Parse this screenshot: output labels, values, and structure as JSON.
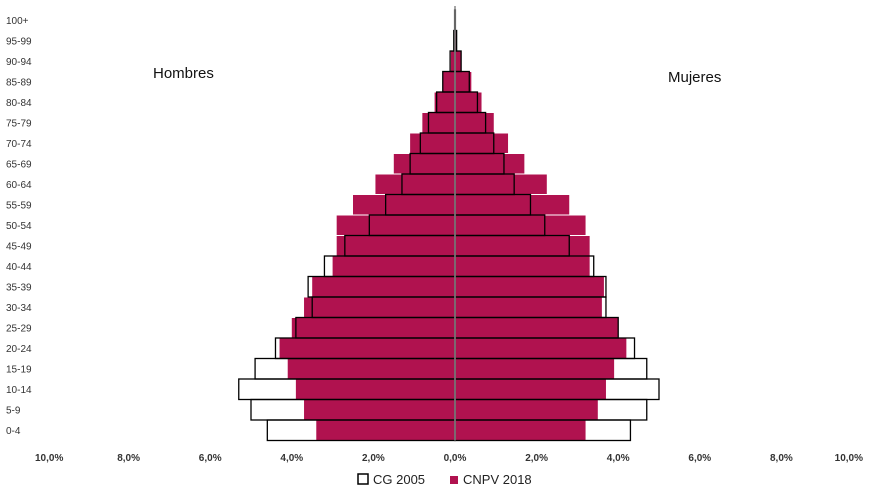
{
  "chart_data": {
    "type": "bar",
    "orientation": "horizontal",
    "subtype": "population-pyramid",
    "categories": [
      "0-4",
      "5-9",
      "10-14",
      "15-19",
      "20-24",
      "25-29",
      "30-34",
      "35-39",
      "40-44",
      "45-49",
      "50-54",
      "55-59",
      "60-64",
      "65-69",
      "70-74",
      "75-79",
      "80-84",
      "85-89",
      "90-94",
      "95-99",
      "100+"
    ],
    "left_label": "Hombres",
    "right_label": "Mujeres",
    "x_ticks": [
      "10,0%",
      "8,0%",
      "6,0%",
      "4,0%",
      "2,0%",
      "0,0%",
      "2,0%",
      "4,0%",
      "6,0%",
      "8,0%",
      "10,0%"
    ],
    "xlim": [
      -10,
      10
    ],
    "series": [
      {
        "name": "CG 2005",
        "style": "outline",
        "color": "#000000",
        "hombres": [
          4.6,
          5.0,
          5.3,
          4.9,
          4.4,
          3.9,
          3.5,
          3.6,
          3.2,
          2.7,
          2.1,
          1.7,
          1.3,
          1.1,
          0.85,
          0.65,
          0.45,
          0.3,
          0.12,
          0.03,
          0.01
        ],
        "mujeres": [
          4.3,
          4.7,
          5.0,
          4.7,
          4.4,
          4.0,
          3.7,
          3.7,
          3.4,
          2.8,
          2.2,
          1.85,
          1.45,
          1.2,
          0.95,
          0.75,
          0.55,
          0.35,
          0.15,
          0.04,
          0.01
        ]
      },
      {
        "name": "CNPV 2018",
        "style": "fill",
        "color": "#B0124F",
        "hombres": [
          3.4,
          3.7,
          3.9,
          4.1,
          4.3,
          4.0,
          3.7,
          3.5,
          3.0,
          2.9,
          2.9,
          2.5,
          1.95,
          1.5,
          1.1,
          0.8,
          0.5,
          0.3,
          0.1,
          0.02,
          0.01
        ],
        "mujeres": [
          3.2,
          3.5,
          3.7,
          3.9,
          4.2,
          4.0,
          3.6,
          3.65,
          3.3,
          3.3,
          3.2,
          2.8,
          2.25,
          1.7,
          1.3,
          0.95,
          0.65,
          0.4,
          0.15,
          0.03,
          0.01
        ]
      }
    ],
    "grid": false,
    "legend": "bottom-center"
  }
}
